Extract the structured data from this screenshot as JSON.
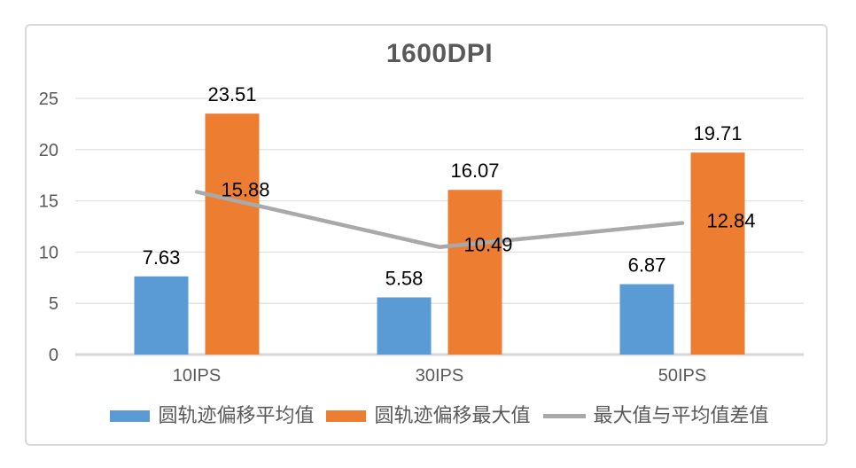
{
  "chart_data": {
    "type": "bar",
    "title": "1600DPI",
    "categories": [
      "10IPS",
      "30IPS",
      "50IPS"
    ],
    "series": [
      {
        "name": "圆轨迹偏移平均值",
        "type": "bar",
        "color": "#5b9bd5",
        "values": [
          7.63,
          5.58,
          6.87
        ]
      },
      {
        "name": "圆轨迹偏移最大值",
        "type": "bar",
        "color": "#ed7d31",
        "values": [
          23.51,
          16.07,
          19.71
        ]
      },
      {
        "name": "最大值与平均值差值",
        "type": "line",
        "color": "#a9a9a9",
        "values": [
          15.88,
          10.49,
          12.84
        ]
      }
    ],
    "xlabel": "",
    "ylabel": "",
    "ylim": [
      0,
      25
    ],
    "yticks": [
      0,
      5,
      10,
      15,
      20,
      25
    ],
    "grid": true,
    "data_labels": true,
    "legend_position": "bottom"
  },
  "colors": {
    "bar_average": "#5b9bd5",
    "bar_max": "#ed7d31",
    "diff_line": "#a9a9a9",
    "gridline": "#e2e2e2",
    "axis_line": "#d6d6d6",
    "axis_text": "#595959",
    "title_text": "#595959",
    "data_label_text": "#000000",
    "chart_border": "#d9d9d9",
    "background": "#ffffff"
  }
}
